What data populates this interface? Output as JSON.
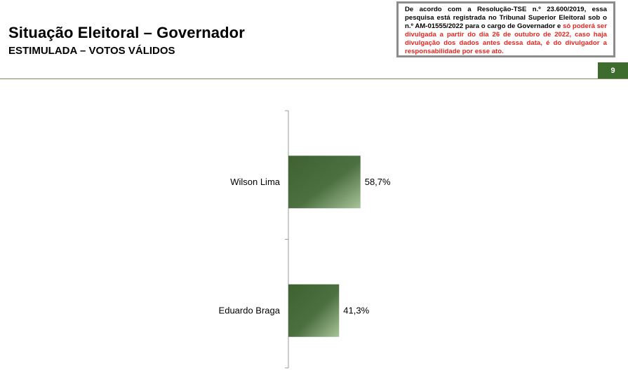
{
  "header": {
    "title": "Situação Eleitoral – Governador",
    "subtitle": "ESTIMULADA – VOTOS VÁLIDOS",
    "page_number": "9"
  },
  "notice": {
    "part1": "De acordo com a Resolução-TSE n.º 23.600/2019, essa pesquisa está registrada no Tribunal Superior Eleitoral sob o n.º ",
    "registration": "AM-01555/2022",
    "part2": " para o cargo de Governador e ",
    "red_text": "só poderá ser divulgada a partir do dia 26 de outubro de 2022, caso haja divulgação dos dados antes dessa data, é do divulgador a responsabilidade por esse ato."
  },
  "colors": {
    "bar_dark": "#3f6130",
    "bar_light": "#a8c49a",
    "accent_green": "#3e6b2e",
    "notice_red": "#e8251d"
  },
  "chart_data": {
    "type": "bar",
    "orientation": "horizontal",
    "categories": [
      "Wilson Lima",
      "Eduardo Braga"
    ],
    "values": [
      58.7,
      41.3
    ],
    "value_labels": [
      "58,7%",
      "41,3%"
    ],
    "unit": "%",
    "xlim": [
      0,
      100
    ],
    "grid": false,
    "legend": "none"
  }
}
